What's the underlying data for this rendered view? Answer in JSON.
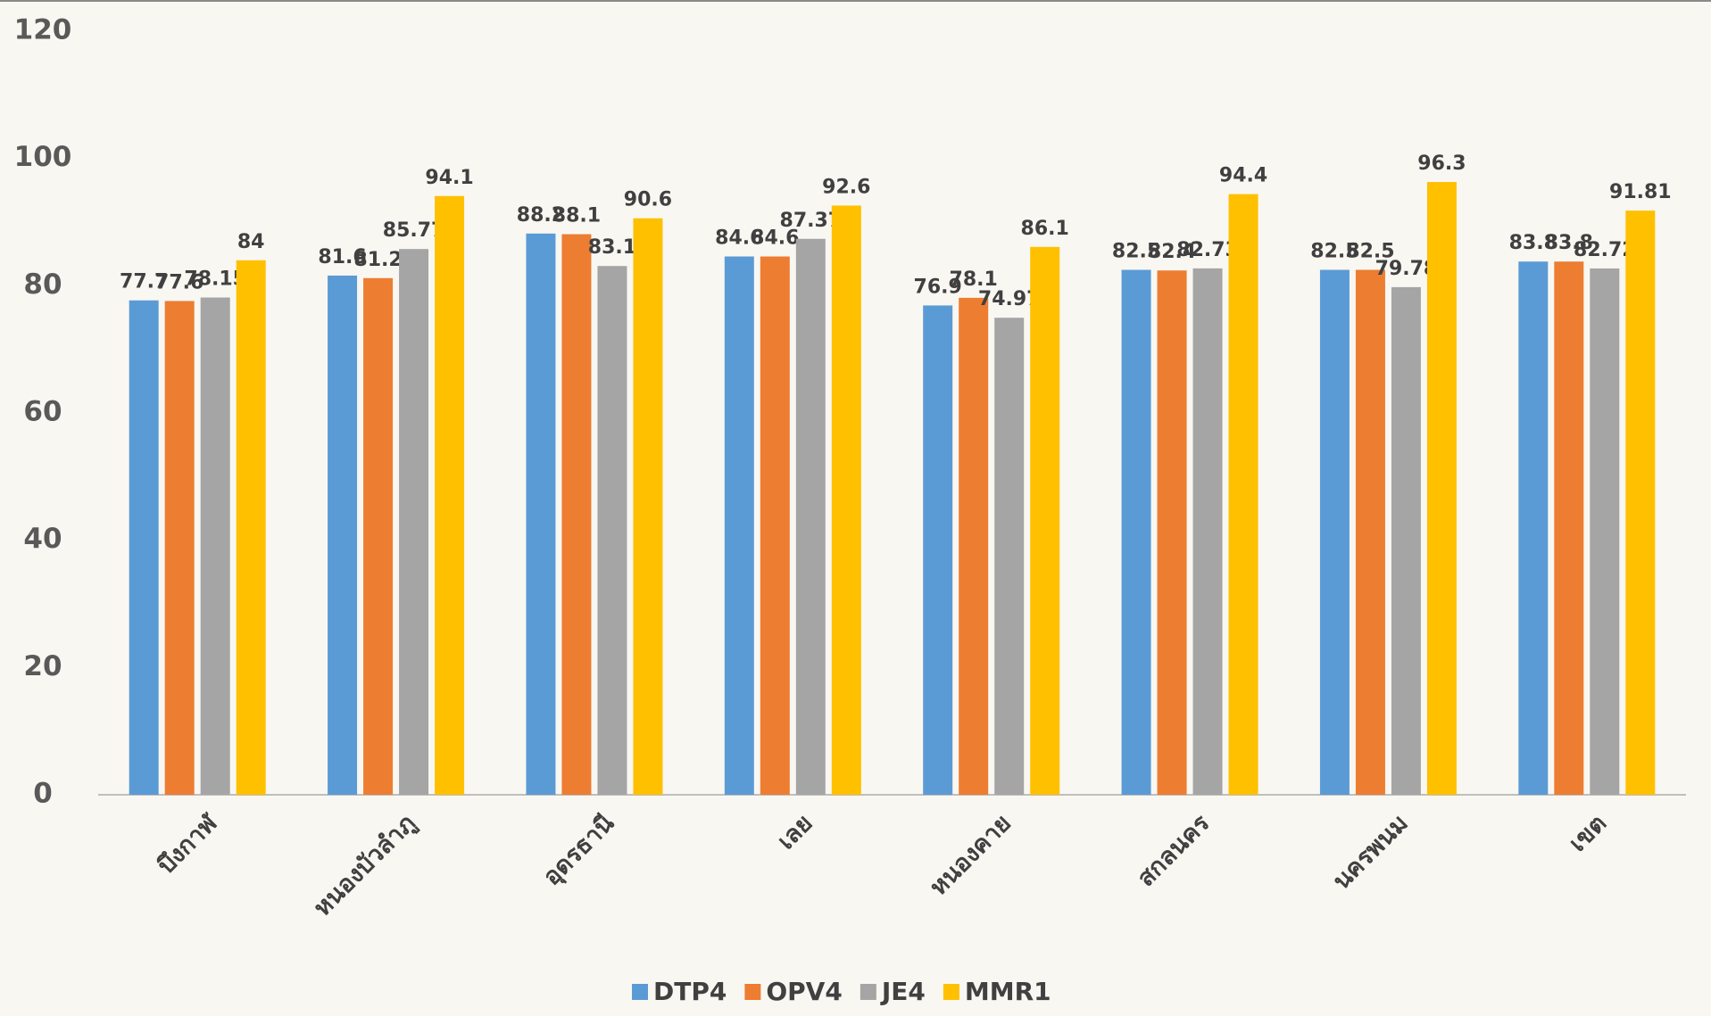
{
  "chart_data": {
    "type": "bar",
    "categories": [
      "บึงกาฬ",
      "หนองบัวลำภู",
      "อุดรธานี",
      "เลย",
      "หนองคาย",
      "สกลนคร",
      "นครพนม",
      "เขต"
    ],
    "series": [
      {
        "name": "DTP4",
        "color": "#5b9bd5",
        "values": [
          77.7,
          81.6,
          88.2,
          84.6,
          76.9,
          82.5,
          82.5,
          83.8
        ]
      },
      {
        "name": "OPV4",
        "color": "#ed7d31",
        "values": [
          77.6,
          81.2,
          88.1,
          84.6,
          78.1,
          82.4,
          82.5,
          83.8
        ]
      },
      {
        "name": "JE4",
        "color": "#a5a5a5",
        "values": [
          78.15,
          85.77,
          83.1,
          87.37,
          74.97,
          82.73,
          79.78,
          82.72
        ]
      },
      {
        "name": "MMR1",
        "color": "#ffc000",
        "values": [
          84,
          94.1,
          90.6,
          92.6,
          86.1,
          94.4,
          96.3,
          91.81
        ]
      }
    ],
    "ylim": [
      0,
      120
    ],
    "yticks": [
      0,
      20,
      40,
      60,
      80,
      100,
      120
    ],
    "grid": false,
    "legend": "bottom"
  }
}
